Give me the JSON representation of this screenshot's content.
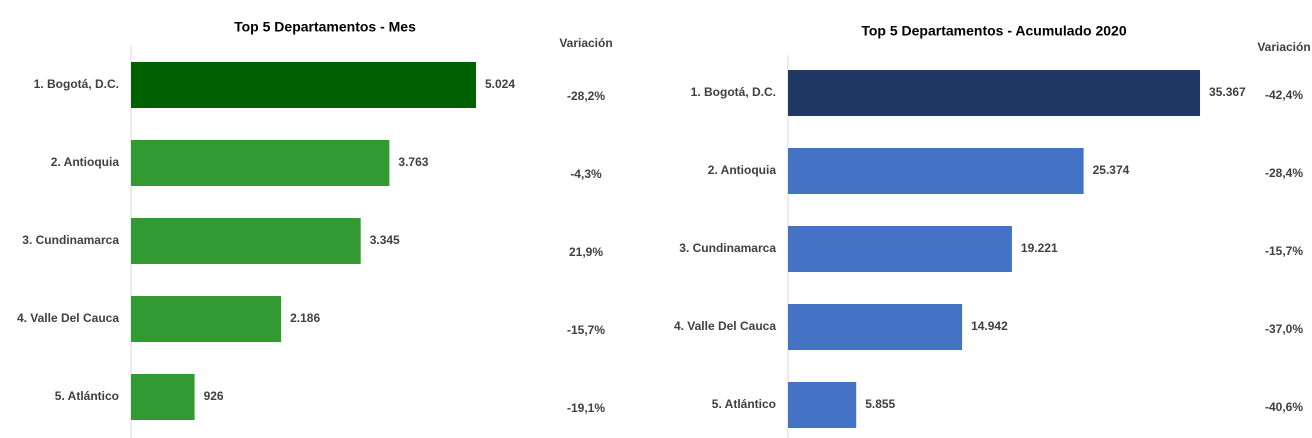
{
  "chart_data": [
    {
      "type": "barh",
      "title": "Top 5 Departamentos - Mes",
      "categories": [
        "1. Bogotá, D.C.",
        "2. Antioquia",
        "3. Cundinamarca",
        "4. Valle Del Cauca",
        "5. Atlántico"
      ],
      "values": [
        5024,
        3763,
        3345,
        2186,
        926
      ],
      "value_labels": [
        "5.024",
        "3.763",
        "3.345",
        "2.186",
        "926"
      ],
      "colors": [
        "#006100",
        "#339933",
        "#339933",
        "#339933",
        "#339933"
      ],
      "xlim": [
        0,
        6000
      ],
      "variation_title": "Variación",
      "variation": [
        "-28,2%",
        "-4,3%",
        "21,9%",
        "-15,7%",
        "-19,1%"
      ]
    },
    {
      "type": "barh",
      "title": "Top 5 Departamentos - Acumulado 2020",
      "categories": [
        "1. Bogotá, D.C.",
        "2. Antioquia",
        "3. Cundinamarca",
        "4. Valle Del Cauca",
        "5. Atlántico"
      ],
      "values": [
        35367,
        25374,
        19221,
        14942,
        5855
      ],
      "value_labels": [
        "35.367",
        "25.374",
        "19.221",
        "14.942",
        "5.855"
      ],
      "colors": [
        "#203864",
        "#4472c4",
        "#4472c4",
        "#4472c4",
        "#4472c4"
      ],
      "xlim": [
        0,
        40000
      ],
      "variation_title": "Variación",
      "variation": [
        "-42,4%",
        "-28,4%",
        "-15,7%",
        "-37,0%",
        "-40,6%"
      ]
    }
  ]
}
